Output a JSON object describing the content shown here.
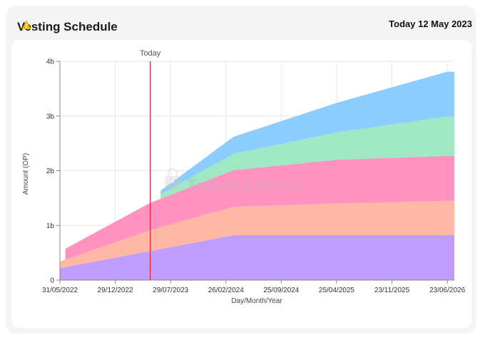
{
  "header": {
    "title": "Vesting Schedule",
    "date_label": "Today 12 May 2023"
  },
  "watermark": "TokenUnlocks.",
  "chart_data": {
    "type": "area",
    "stacked": true,
    "xlabel": "Day/Month/Year",
    "ylabel": "Amount (OP)",
    "ylim": [
      0,
      4
    ],
    "y_ticks": [
      {
        "value": 0,
        "label": "0"
      },
      {
        "value": 1,
        "label": "1b"
      },
      {
        "value": 2,
        "label": "2b"
      },
      {
        "value": 3,
        "label": "3b"
      },
      {
        "value": 4,
        "label": "4b"
      }
    ],
    "x_ticks": [
      "31/05/2022",
      "29/12/2022",
      "29/07/2023",
      "26/02/2024",
      "25/09/2024",
      "25/04/2025",
      "23/11/2025",
      "23/06/2026"
    ],
    "today_marker": {
      "label": "Today",
      "date": "12/05/2023"
    },
    "grid": true,
    "legend": "none",
    "series": [
      {
        "color": "#c09cff",
        "points": [
          [
            "31/05/2022",
            0.22
          ],
          [
            "26/03/2024",
            0.82
          ],
          [
            "20/07/2026",
            0.82
          ]
        ]
      },
      {
        "color": "#ffb8a6",
        "points": [
          [
            "31/05/2022",
            0.12
          ],
          [
            "12/05/2023",
            0.38
          ],
          [
            "26/03/2024",
            0.52
          ],
          [
            "25/04/2025",
            0.58
          ],
          [
            "23/06/2026",
            0.63
          ],
          [
            "20/07/2026",
            0.63
          ]
        ]
      },
      {
        "color": "#ff92bf",
        "points": [
          [
            "31/05/2022",
            0.0
          ],
          [
            "20/06/2022",
            0.0
          ],
          [
            "21/06/2022",
            0.2
          ],
          [
            "12/05/2023",
            0.5
          ],
          [
            "26/03/2024",
            0.67
          ],
          [
            "25/04/2025",
            0.8
          ],
          [
            "23/06/2026",
            0.82
          ],
          [
            "20/07/2026",
            0.82
          ]
        ]
      },
      {
        "color": "#9ee8c4",
        "points": [
          [
            "20/06/2023",
            0.0
          ],
          [
            "21/06/2023",
            0.08
          ],
          [
            "26/03/2024",
            0.3
          ],
          [
            "25/04/2025",
            0.5
          ],
          [
            "23/06/2026",
            0.72
          ],
          [
            "20/07/2026",
            0.72
          ]
        ]
      },
      {
        "color": "#8ccdff",
        "points": [
          [
            "20/06/2023",
            0.0
          ],
          [
            "21/06/2023",
            0.07
          ],
          [
            "26/03/2024",
            0.31
          ],
          [
            "25/04/2025",
            0.54
          ],
          [
            "23/06/2026",
            0.82
          ],
          [
            "20/07/2026",
            0.82
          ]
        ]
      }
    ]
  }
}
